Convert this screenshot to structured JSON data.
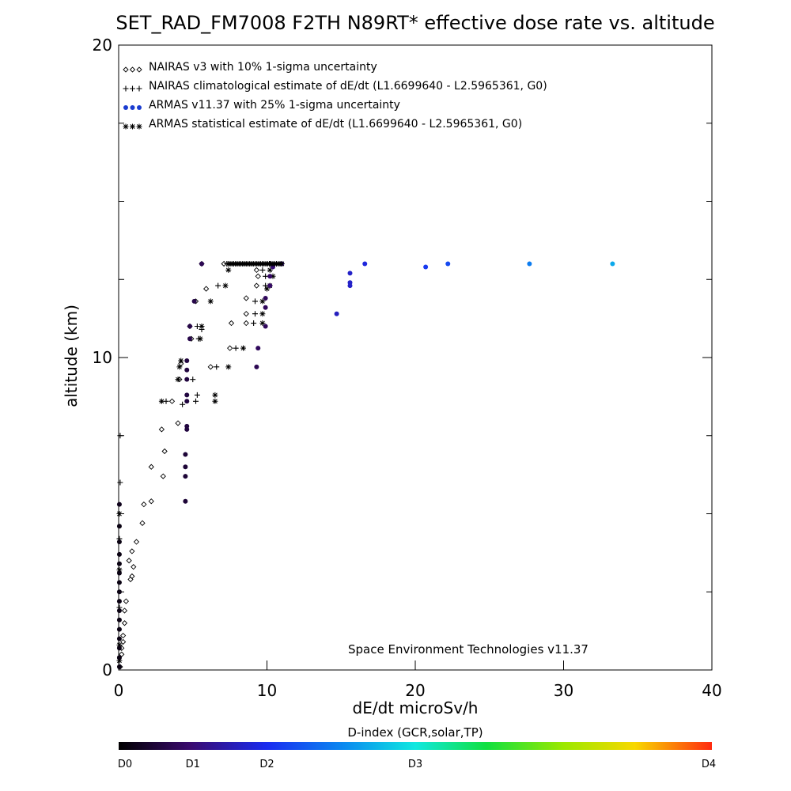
{
  "chart_data": {
    "type": "scatter",
    "title": "SET_RAD_FM7008  F2TH N89RT* effective dose rate vs. altitude",
    "xlabel": "dE/dt microSv/h",
    "ylabel": "altitude (km)",
    "xlim": [
      0,
      40
    ],
    "ylim": [
      0,
      20
    ],
    "x_ticks": [
      "0",
      "10",
      "20",
      "30",
      "40"
    ],
    "y_ticks": [
      "0",
      "10",
      "20"
    ],
    "credit": "Space Environment Technologies v11.37",
    "legend_position": "top-left",
    "legend": [
      {
        "symbol": "◇◇◇",
        "label": "NAIRAS v3 with 10% 1-sigma uncertainty"
      },
      {
        "symbol": "+++",
        "label": "NAIRAS climatological estimate of dE/dt (L1.6699640 - L2.5965361, G0)"
      },
      {
        "symbol": "●●●",
        "label": "ARMAS v11.37 with 25% 1-sigma uncertainty",
        "color": "#1a3cd0"
      },
      {
        "symbol": "✱✱✱",
        "label": "ARMAS statistical estimate of dE/dt (L1.6699640 - L2.5965361, G0)"
      }
    ],
    "colorbar": {
      "title": "D-index (GCR,solar,TP)",
      "labels": [
        "D0",
        "D1",
        "D2",
        "D3",
        "D4"
      ],
      "label_positions": [
        0,
        0.125,
        0.25,
        0.5,
        1
      ]
    },
    "series": [
      {
        "marker": "diamond",
        "points": [
          [
            0.1,
            0.1
          ],
          [
            0.2,
            0.5
          ],
          [
            0.2,
            0.7
          ],
          [
            0.3,
            0.9
          ],
          [
            0.3,
            1.1
          ],
          [
            0.4,
            1.5
          ],
          [
            0.4,
            1.9
          ],
          [
            0.5,
            2.2
          ],
          [
            0.8,
            2.9
          ],
          [
            0.9,
            3.0
          ],
          [
            1.0,
            3.3
          ],
          [
            0.7,
            3.5
          ],
          [
            0.9,
            3.8
          ],
          [
            1.2,
            4.1
          ],
          [
            1.6,
            4.7
          ],
          [
            1.7,
            5.3
          ],
          [
            2.2,
            5.4
          ],
          [
            3.0,
            6.2
          ],
          [
            2.2,
            6.5
          ],
          [
            3.1,
            7.0
          ],
          [
            2.9,
            7.7
          ],
          [
            4.0,
            7.9
          ],
          [
            3.6,
            8.6
          ],
          [
            4.1,
            9.3
          ],
          [
            4.2,
            9.8
          ],
          [
            6.2,
            9.7
          ],
          [
            7.5,
            10.3
          ],
          [
            4.9,
            10.6
          ],
          [
            4.8,
            11.0
          ],
          [
            7.6,
            11.1
          ],
          [
            8.6,
            11.1
          ],
          [
            8.6,
            11.4
          ],
          [
            5.2,
            11.8
          ],
          [
            8.6,
            11.9
          ],
          [
            5.9,
            12.2
          ],
          [
            9.3,
            12.3
          ],
          [
            9.4,
            12.6
          ],
          [
            9.3,
            12.8
          ],
          [
            5.6,
            13.0
          ],
          [
            7.1,
            13.0
          ]
        ]
      },
      {
        "marker": "plus",
        "points": [
          [
            0.05,
            2.0
          ],
          [
            0.05,
            4.2
          ],
          [
            0.1,
            6.0
          ],
          [
            0.1,
            7.5
          ],
          [
            4.3,
            8.5
          ],
          [
            3.2,
            8.6
          ],
          [
            5.2,
            8.6
          ],
          [
            5.3,
            8.8
          ],
          [
            5.0,
            9.3
          ],
          [
            6.6,
            9.7
          ],
          [
            7.9,
            10.3
          ],
          [
            5.4,
            10.6
          ],
          [
            5.6,
            10.9
          ],
          [
            5.3,
            11.0
          ],
          [
            9.1,
            11.1
          ],
          [
            9.2,
            11.4
          ],
          [
            9.2,
            11.8
          ],
          [
            6.7,
            12.3
          ],
          [
            9.9,
            12.3
          ],
          [
            9.9,
            12.6
          ],
          [
            9.7,
            12.8
          ],
          [
            10.2,
            13.0
          ],
          [
            7.3,
            13.0
          ]
        ]
      },
      {
        "marker": "asterisk",
        "points": [
          [
            0.05,
            0.3
          ],
          [
            0.05,
            0.8
          ],
          [
            0.05,
            3.2
          ],
          [
            0.05,
            5.0
          ],
          [
            2.9,
            8.6
          ],
          [
            6.5,
            8.6
          ],
          [
            6.5,
            8.8
          ],
          [
            4.0,
            9.3
          ],
          [
            4.1,
            9.7
          ],
          [
            4.2,
            9.9
          ],
          [
            7.4,
            9.7
          ],
          [
            8.4,
            10.3
          ],
          [
            5.5,
            10.6
          ],
          [
            5.6,
            11.0
          ],
          [
            9.7,
            11.1
          ],
          [
            9.7,
            11.4
          ],
          [
            9.7,
            11.8
          ],
          [
            10.0,
            12.2
          ],
          [
            6.2,
            11.8
          ],
          [
            7.2,
            12.3
          ],
          [
            10.2,
            12.3
          ],
          [
            10.4,
            12.6
          ],
          [
            10.2,
            12.8
          ],
          [
            7.4,
            12.8
          ],
          [
            11.0,
            13.0
          ]
        ]
      },
      {
        "marker": "dot",
        "points": [
          {
            "x": 0.05,
            "y": 0.1,
            "d": 0.02
          },
          {
            "x": 0.05,
            "y": 0.4,
            "d": 0.02
          },
          {
            "x": 0.05,
            "y": 0.7,
            "d": 0.02
          },
          {
            "x": 0.05,
            "y": 1.0,
            "d": 0.02
          },
          {
            "x": 0.05,
            "y": 1.3,
            "d": 0.02
          },
          {
            "x": 0.05,
            "y": 1.6,
            "d": 0.02
          },
          {
            "x": 0.05,
            "y": 1.9,
            "d": 0.02
          },
          {
            "x": 0.05,
            "y": 2.2,
            "d": 0.02
          },
          {
            "x": 0.05,
            "y": 2.5,
            "d": 0.02
          },
          {
            "x": 0.05,
            "y": 2.8,
            "d": 0.02
          },
          {
            "x": 0.05,
            "y": 3.1,
            "d": 0.02
          },
          {
            "x": 0.05,
            "y": 3.4,
            "d": 0.02
          },
          {
            "x": 0.05,
            "y": 3.7,
            "d": 0.02
          },
          {
            "x": 0.05,
            "y": 4.1,
            "d": 0.02
          },
          {
            "x": 0.05,
            "y": 4.6,
            "d": 0.02
          },
          {
            "x": 0.05,
            "y": 5.3,
            "d": 0.03
          },
          {
            "x": 4.5,
            "y": 5.4,
            "d": 0.06
          },
          {
            "x": 4.5,
            "y": 6.2,
            "d": 0.06
          },
          {
            "x": 4.5,
            "y": 6.5,
            "d": 0.06
          },
          {
            "x": 4.5,
            "y": 6.9,
            "d": 0.06
          },
          {
            "x": 4.6,
            "y": 7.7,
            "d": 0.07
          },
          {
            "x": 4.6,
            "y": 7.8,
            "d": 0.07
          },
          {
            "x": 4.6,
            "y": 8.6,
            "d": 0.07
          },
          {
            "x": 4.6,
            "y": 8.8,
            "d": 0.07
          },
          {
            "x": 4.6,
            "y": 9.3,
            "d": 0.07
          },
          {
            "x": 4.6,
            "y": 9.6,
            "d": 0.07
          },
          {
            "x": 4.6,
            "y": 9.9,
            "d": 0.07
          },
          {
            "x": 9.3,
            "y": 9.7,
            "d": 0.09
          },
          {
            "x": 9.4,
            "y": 10.3,
            "d": 0.1
          },
          {
            "x": 4.8,
            "y": 10.6,
            "d": 0.08
          },
          {
            "x": 4.8,
            "y": 11.0,
            "d": 0.08
          },
          {
            "x": 9.9,
            "y": 11.0,
            "d": 0.1
          },
          {
            "x": 9.9,
            "y": 11.6,
            "d": 0.1
          },
          {
            "x": 5.1,
            "y": 11.8,
            "d": 0.08
          },
          {
            "x": 9.9,
            "y": 11.9,
            "d": 0.1
          },
          {
            "x": 10.2,
            "y": 12.3,
            "d": 0.11
          },
          {
            "x": 10.2,
            "y": 12.6,
            "d": 0.11
          },
          {
            "x": 10.4,
            "y": 12.9,
            "d": 0.13
          },
          {
            "x": 5.6,
            "y": 13.0,
            "d": 0.09
          },
          {
            "x": 11.0,
            "y": 13.0,
            "d": 0.14
          },
          {
            "x": 14.7,
            "y": 11.4,
            "d": 0.2
          },
          {
            "x": 15.6,
            "y": 12.3,
            "d": 0.21
          },
          {
            "x": 15.6,
            "y": 12.4,
            "d": 0.21
          },
          {
            "x": 15.6,
            "y": 12.7,
            "d": 0.21
          },
          {
            "x": 16.6,
            "y": 13.0,
            "d": 0.23
          },
          {
            "x": 20.7,
            "y": 12.9,
            "d": 0.27
          },
          {
            "x": 22.2,
            "y": 13.0,
            "d": 0.29
          },
          {
            "x": 27.7,
            "y": 13.0,
            "d": 0.36
          },
          {
            "x": 33.3,
            "y": 13.0,
            "d": 0.42
          }
        ]
      }
    ]
  }
}
